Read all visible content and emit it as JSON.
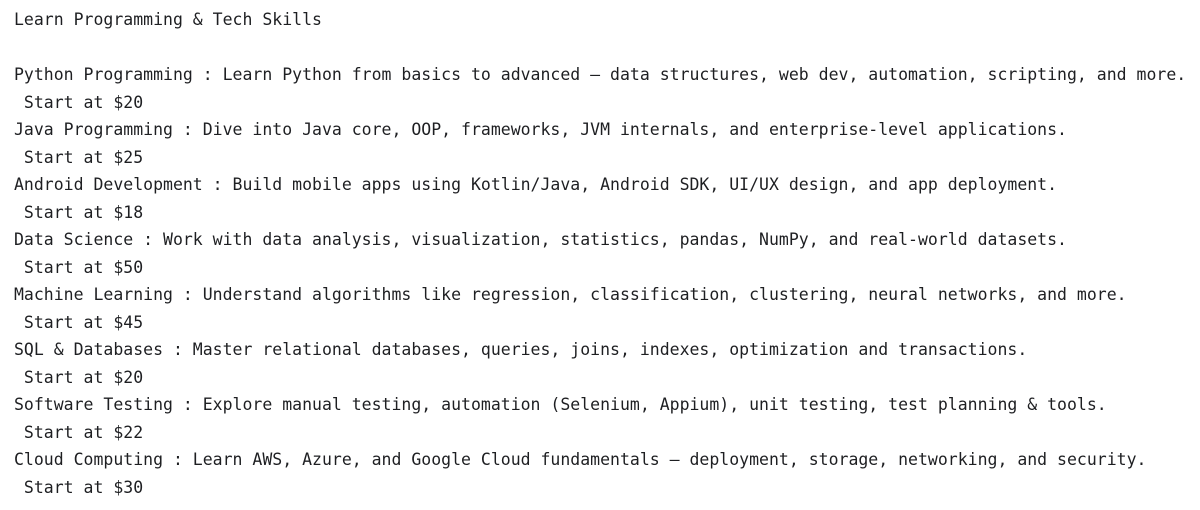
{
  "console": {
    "title": "Learn Programming & Tech Skills",
    "courses": [
      {
        "line": "Python Programming : Learn Python from basics to advanced — data structures, web dev, automation, scripting, and more.",
        "price": " Start at $20"
      },
      {
        "line": "Java Programming : Dive into Java core, OOP, frameworks, JVM internals, and enterprise-level applications.",
        "price": " Start at $25"
      },
      {
        "line": "Android Development : Build mobile apps using Kotlin/Java, Android SDK, UI/UX design, and app deployment.",
        "price": " Start at $18"
      },
      {
        "line": "Data Science : Work with data analysis, visualization, statistics, pandas, NumPy, and real-world datasets.",
        "price": " Start at $50"
      },
      {
        "line": "Machine Learning : Understand algorithms like regression, classification, clustering, neural networks, and more.",
        "price": " Start at $45"
      },
      {
        "line": "SQL & Databases : Master relational databases, queries, joins, indexes, optimization and transactions.",
        "price": " Start at $20"
      },
      {
        "line": "Software Testing : Explore manual testing, automation (Selenium, Appium), unit testing, test planning & tools.",
        "price": " Start at $22"
      },
      {
        "line": "Cloud Computing : Learn AWS, Azure, and Google Cloud fundamentals — deployment, storage, networking, and security.",
        "price": " Start at $30"
      }
    ]
  }
}
